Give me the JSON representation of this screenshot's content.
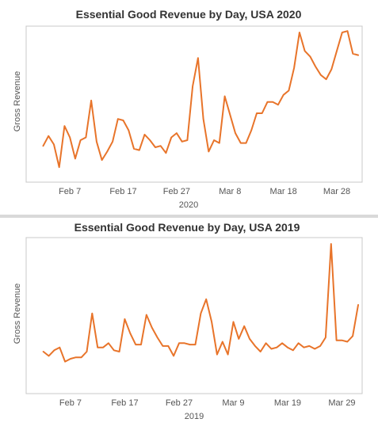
{
  "chart_data": [
    {
      "type": "line",
      "title": "Essential Good Revenue by Day, USA 2020",
      "xlabel": "2020",
      "ylabel": "Gross Revenue",
      "x_ticks": [
        {
          "label": "Feb 7",
          "day": 7
        },
        {
          "label": "Feb 17",
          "day": 17
        },
        {
          "label": "Feb 27",
          "day": 27
        },
        {
          "label": "Mar 8",
          "day": 37
        },
        {
          "label": "Mar 18",
          "day": 47
        },
        {
          "label": "Mar 28",
          "day": 57
        }
      ],
      "x_range": [
        0,
        61
      ],
      "y_range": [
        0,
        100
      ],
      "grid": false,
      "color": "#e8742a",
      "series": [
        {
          "values": [
            [
              2,
              20
            ],
            [
              3,
              27
            ],
            [
              4,
              21
            ],
            [
              5,
              5
            ],
            [
              6,
              34
            ],
            [
              7,
              26
            ],
            [
              8,
              11
            ],
            [
              9,
              24
            ],
            [
              10,
              26
            ],
            [
              11,
              52
            ],
            [
              12,
              23
            ],
            [
              13,
              10
            ],
            [
              14,
              16
            ],
            [
              15,
              23
            ],
            [
              16,
              39
            ],
            [
              17,
              38
            ],
            [
              18,
              31
            ],
            [
              19,
              18
            ],
            [
              20,
              17
            ],
            [
              21,
              28
            ],
            [
              22,
              24
            ],
            [
              23,
              19
            ],
            [
              24,
              20
            ],
            [
              25,
              15
            ],
            [
              26,
              26
            ],
            [
              27,
              29
            ],
            [
              28,
              23
            ],
            [
              29,
              24
            ],
            [
              30,
              62
            ],
            [
              31,
              82
            ],
            [
              32,
              39
            ],
            [
              33,
              16
            ],
            [
              34,
              24
            ],
            [
              35,
              22
            ],
            [
              36,
              55
            ],
            [
              37,
              42
            ],
            [
              38,
              29
            ],
            [
              39,
              22
            ],
            [
              40,
              22
            ],
            [
              41,
              31
            ],
            [
              42,
              43
            ],
            [
              43,
              43
            ],
            [
              44,
              51
            ],
            [
              45,
              51
            ],
            [
              46,
              49
            ],
            [
              47,
              56
            ],
            [
              48,
              59
            ],
            [
              49,
              75
            ],
            [
              50,
              100
            ],
            [
              51,
              87
            ],
            [
              52,
              83
            ],
            [
              53,
              76
            ],
            [
              54,
              70
            ],
            [
              55,
              67
            ],
            [
              56,
              74
            ],
            [
              57,
              87
            ],
            [
              58,
              100
            ],
            [
              59,
              101
            ],
            [
              60,
              85
            ],
            [
              61,
              84
            ]
          ]
        }
      ]
    },
    {
      "type": "line",
      "title": "Essential Good Revenue by Day, USA 2019",
      "xlabel": "2019",
      "ylabel": "Gross Revenue",
      "x_ticks": [
        {
          "label": "Feb 7",
          "day": 7
        },
        {
          "label": "Feb 17",
          "day": 17
        },
        {
          "label": "Feb 27",
          "day": 27
        },
        {
          "label": "Mar 9",
          "day": 37
        },
        {
          "label": "Mar 19",
          "day": 47
        },
        {
          "label": "Mar 29",
          "day": 57
        }
      ],
      "x_range": [
        0,
        60
      ],
      "y_range": [
        0,
        100
      ],
      "grid": false,
      "color": "#e8742a",
      "series": [
        {
          "values": [
            [
              2,
              24
            ],
            [
              3,
              21
            ],
            [
              4,
              25
            ],
            [
              5,
              27
            ],
            [
              6,
              17
            ],
            [
              7,
              19
            ],
            [
              8,
              20
            ],
            [
              9,
              20
            ],
            [
              10,
              24
            ],
            [
              11,
              51
            ],
            [
              12,
              27
            ],
            [
              13,
              27
            ],
            [
              14,
              30
            ],
            [
              15,
              25
            ],
            [
              16,
              24
            ],
            [
              17,
              47
            ],
            [
              18,
              37
            ],
            [
              19,
              29
            ],
            [
              20,
              29
            ],
            [
              21,
              50
            ],
            [
              22,
              41
            ],
            [
              23,
              34
            ],
            [
              24,
              28
            ],
            [
              25,
              28
            ],
            [
              26,
              21
            ],
            [
              27,
              30
            ],
            [
              28,
              30
            ],
            [
              29,
              29
            ],
            [
              30,
              29
            ],
            [
              31,
              51
            ],
            [
              32,
              61
            ],
            [
              33,
              45
            ],
            [
              34,
              22
            ],
            [
              35,
              31
            ],
            [
              36,
              22
            ],
            [
              37,
              45
            ],
            [
              38,
              33
            ],
            [
              39,
              42
            ],
            [
              40,
              33
            ],
            [
              41,
              28
            ],
            [
              42,
              24
            ],
            [
              43,
              30
            ],
            [
              44,
              26
            ],
            [
              45,
              27
            ],
            [
              46,
              30
            ],
            [
              47,
              27
            ],
            [
              48,
              25
            ],
            [
              49,
              30
            ],
            [
              50,
              27
            ],
            [
              51,
              28
            ],
            [
              52,
              26
            ],
            [
              53,
              28
            ],
            [
              54,
              34
            ],
            [
              55,
              100
            ],
            [
              56,
              32
            ],
            [
              57,
              32
            ],
            [
              58,
              31
            ],
            [
              59,
              35
            ],
            [
              60,
              57
            ]
          ]
        }
      ]
    }
  ]
}
